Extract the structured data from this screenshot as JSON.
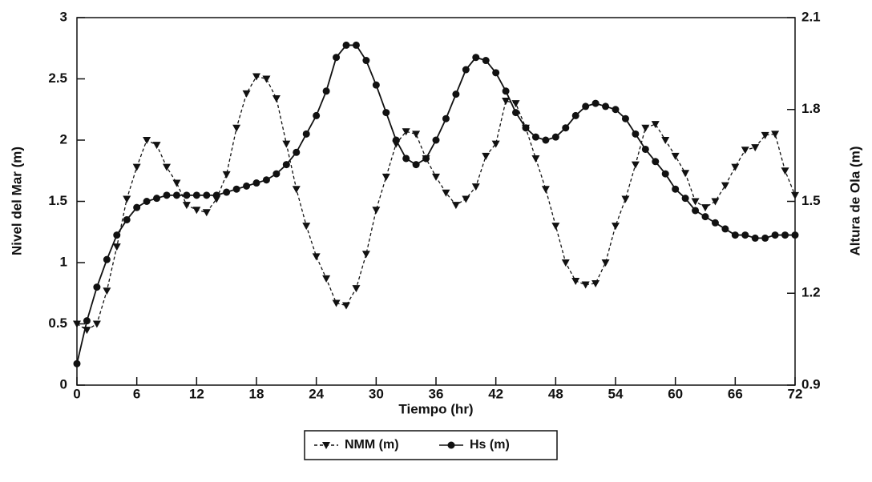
{
  "chart_data": {
    "type": "line",
    "xlabel": "Tiempo (hr)",
    "ylabel": "Nivel del Mar (m)",
    "y2label": "Altura de Ola (m)",
    "x": [
      0,
      1,
      2,
      3,
      4,
      5,
      6,
      7,
      8,
      9,
      10,
      11,
      12,
      13,
      14,
      15,
      16,
      17,
      18,
      19,
      20,
      21,
      22,
      23,
      24,
      25,
      26,
      27,
      28,
      29,
      30,
      31,
      32,
      33,
      34,
      35,
      36,
      37,
      38,
      39,
      40,
      41,
      42,
      43,
      44,
      45,
      46,
      47,
      48,
      49,
      50,
      51,
      52,
      53,
      54,
      55,
      56,
      57,
      58,
      59,
      60,
      61,
      62,
      63,
      64,
      65,
      66,
      67,
      68,
      69,
      70,
      71,
      72
    ],
    "series": [
      {
        "name": "NMM (m)",
        "color": "#111111",
        "marker": "triangle-down",
        "linestyle": "dashed",
        "axis": "y",
        "values": [
          0.5,
          0.45,
          0.5,
          0.77,
          1.13,
          1.52,
          1.78,
          2.0,
          1.96,
          1.78,
          1.65,
          1.47,
          1.43,
          1.41,
          1.52,
          1.72,
          2.1,
          2.38,
          2.52,
          2.5,
          2.34,
          1.97,
          1.6,
          1.3,
          1.05,
          0.87,
          0.67,
          0.65,
          0.79,
          1.07,
          1.43,
          1.7,
          1.97,
          2.07,
          2.05,
          1.85,
          1.7,
          1.57,
          1.47,
          1.52,
          1.62,
          1.87,
          1.97,
          2.32,
          2.3,
          2.1,
          1.85,
          1.6,
          1.3,
          1.0,
          0.85,
          0.82,
          0.83,
          1.0,
          1.3,
          1.52,
          1.8,
          2.1,
          2.13,
          2.0,
          1.87,
          1.73,
          1.5,
          1.45,
          1.5,
          1.63,
          1.78,
          1.92,
          1.94,
          2.04,
          2.05,
          1.75,
          1.55
        ]
      },
      {
        "name": "Hs (m)",
        "color": "#111111",
        "marker": "circle",
        "linestyle": "solid",
        "axis": "y2",
        "values": [
          0.97,
          1.11,
          1.22,
          1.31,
          1.39,
          1.44,
          1.48,
          1.5,
          1.51,
          1.52,
          1.52,
          1.52,
          1.52,
          1.52,
          1.52,
          1.53,
          1.54,
          1.55,
          1.56,
          1.57,
          1.59,
          1.62,
          1.66,
          1.72,
          1.78,
          1.86,
          1.97,
          2.01,
          2.01,
          1.96,
          1.88,
          1.79,
          1.7,
          1.64,
          1.62,
          1.64,
          1.7,
          1.77,
          1.85,
          1.93,
          1.97,
          1.96,
          1.92,
          1.86,
          1.79,
          1.74,
          1.71,
          1.7,
          1.71,
          1.74,
          1.78,
          1.81,
          1.82,
          1.81,
          1.8,
          1.77,
          1.72,
          1.67,
          1.63,
          1.59,
          1.54,
          1.51,
          1.47,
          1.45,
          1.43,
          1.41,
          1.39,
          1.39,
          1.38,
          1.38,
          1.39,
          1.39,
          1.39
        ]
      }
    ],
    "xlim": [
      0,
      72
    ],
    "xticks": [
      0,
      6,
      12,
      18,
      24,
      30,
      36,
      42,
      48,
      54,
      60,
      66,
      72
    ],
    "ylim": [
      0,
      3
    ],
    "yticks": [
      0,
      0.5,
      1,
      1.5,
      2,
      2.5,
      3
    ],
    "y2lim": [
      0.9,
      2.1
    ],
    "y2ticks": [
      0.9,
      1.2,
      1.5,
      1.8,
      2.1
    ],
    "grid": false,
    "legend": "bottom"
  }
}
